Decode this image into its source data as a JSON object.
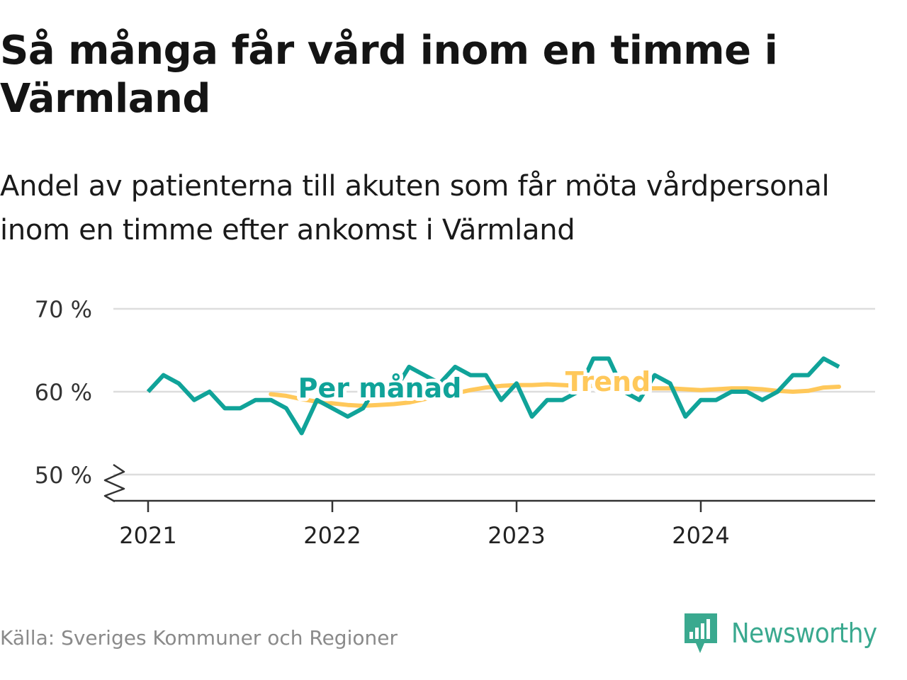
{
  "header": {
    "title": "Så många får vård inom en timme i Värmland",
    "subtitle": "Andel av patienterna till akuten som får möta vårdpersonal inom en timme efter ankomst i Värmland"
  },
  "footer": {
    "source": "Källa: Sveriges Kommuner och Regioner",
    "brand": "Newsworthy"
  },
  "colors": {
    "monthly": "#10a399",
    "trend": "#ffc85a",
    "grid": "#dddddd",
    "brand": "#3aa98f"
  },
  "chart_data": {
    "type": "line",
    "title": "Så många får vård inom en timme i Värmland",
    "subtitle": "Andel av patienterna till akuten som får möta vårdpersonal inom en timme efter ankomst i Värmland",
    "xlabel": "",
    "ylabel": "",
    "xlim": [
      "2020-12",
      "2024-11"
    ],
    "ylim": [
      47,
      70
    ],
    "yticks": [
      50,
      60,
      70
    ],
    "ytick_labels": [
      "50 %",
      "60 %",
      "70 %"
    ],
    "xticks": [
      "2021-01",
      "2022-01",
      "2023-01",
      "2024-01"
    ],
    "xtick_labels": [
      "2021",
      "2022",
      "2023",
      "2024"
    ],
    "grid": true,
    "y_axis_break": true,
    "series": [
      {
        "name": "Per månad",
        "x": [
          "2021-01",
          "2021-02",
          "2021-03",
          "2021-04",
          "2021-05",
          "2021-06",
          "2021-07",
          "2021-08",
          "2021-09",
          "2021-10",
          "2021-11",
          "2021-12",
          "2022-01",
          "2022-02",
          "2022-03",
          "2022-04",
          "2022-05",
          "2022-06",
          "2022-07",
          "2022-08",
          "2022-09",
          "2022-10",
          "2022-11",
          "2022-12",
          "2023-01",
          "2023-02",
          "2023-03",
          "2023-04",
          "2023-05",
          "2023-06",
          "2023-07",
          "2023-08",
          "2023-09",
          "2023-10",
          "2023-11",
          "2023-12",
          "2024-01",
          "2024-02",
          "2024-03",
          "2024-04",
          "2024-05",
          "2024-06",
          "2024-07",
          "2024-08",
          "2024-09",
          "2024-10"
        ],
        "values": [
          60,
          62,
          61,
          59,
          60,
          58,
          58,
          59,
          59,
          58,
          55,
          59,
          58,
          57,
          58,
          61,
          60,
          63,
          62,
          61,
          63,
          62,
          62,
          59,
          61,
          57,
          59,
          59,
          60,
          64,
          64,
          60,
          59,
          62,
          61,
          57,
          59,
          59,
          60,
          60,
          59,
          60,
          62,
          62,
          64,
          63
        ]
      },
      {
        "name": "Trend",
        "x": [
          "2021-09",
          "2021-10",
          "2021-11",
          "2021-12",
          "2022-01",
          "2022-02",
          "2022-03",
          "2022-04",
          "2022-05",
          "2022-06",
          "2022-07",
          "2022-08",
          "2022-09",
          "2022-10",
          "2022-11",
          "2022-12",
          "2023-01",
          "2023-02",
          "2023-03",
          "2023-04",
          "2023-05",
          "2023-06",
          "2023-07",
          "2023-08",
          "2023-09",
          "2023-10",
          "2023-11",
          "2023-12",
          "2024-01",
          "2024-02",
          "2024-03",
          "2024-04",
          "2024-05",
          "2024-06",
          "2024-07",
          "2024-08",
          "2024-09",
          "2024-10"
        ],
        "values": [
          59.7,
          59.5,
          59.1,
          58.8,
          58.6,
          58.4,
          58.3,
          58.4,
          58.5,
          58.7,
          59.1,
          59.5,
          59.8,
          60.2,
          60.5,
          60.7,
          60.8,
          60.8,
          60.9,
          60.8,
          60.7,
          60.7,
          60.6,
          60.5,
          60.4,
          60.4,
          60.4,
          60.3,
          60.2,
          60.3,
          60.4,
          60.4,
          60.3,
          60.1,
          60.0,
          60.1,
          60.5,
          60.6
        ]
      }
    ],
    "annotations": [
      {
        "text": "Per månad",
        "series": "Per månad"
      },
      {
        "text": "Trend",
        "series": "Trend"
      }
    ]
  }
}
